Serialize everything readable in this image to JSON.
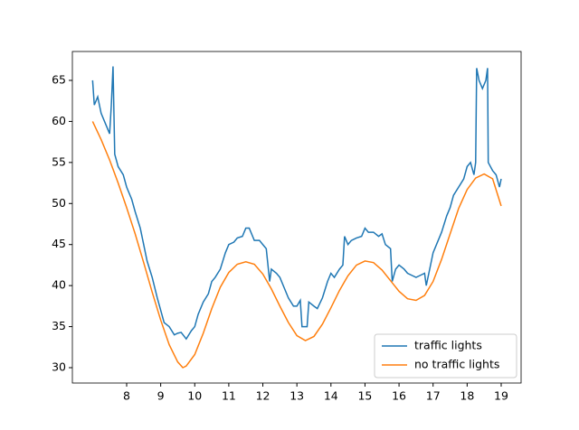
{
  "chart_data": {
    "type": "line",
    "xlim": [
      6.406,
      19.585
    ],
    "ylim": [
      28.13,
      68.52
    ],
    "xticks": [
      8,
      9,
      10,
      11,
      12,
      13,
      14,
      15,
      16,
      17,
      18,
      19
    ],
    "yticks": [
      30,
      35,
      40,
      45,
      50,
      55,
      60,
      65
    ],
    "legend": "lower right",
    "series": [
      {
        "name": "traffic lights",
        "color": "#1f77b4",
        "x": [
          7.0,
          7.05,
          7.15,
          7.25,
          7.4,
          7.5,
          7.55,
          7.6,
          7.65,
          7.75,
          7.9,
          8.0,
          8.15,
          8.25,
          8.4,
          8.5,
          8.6,
          8.75,
          8.9,
          9.0,
          9.1,
          9.25,
          9.4,
          9.5,
          9.6,
          9.75,
          9.9,
          10.0,
          10.1,
          10.25,
          10.4,
          10.5,
          10.6,
          10.75,
          10.9,
          11.0,
          11.15,
          11.25,
          11.4,
          11.5,
          11.6,
          11.75,
          11.9,
          12.0,
          12.1,
          12.2,
          12.25,
          12.4,
          12.5,
          12.6,
          12.75,
          12.9,
          13.0,
          13.1,
          13.15,
          13.3,
          13.35,
          13.5,
          13.6,
          13.75,
          13.9,
          14.0,
          14.1,
          14.25,
          14.35,
          14.4,
          14.5,
          14.6,
          14.75,
          14.9,
          15.0,
          15.1,
          15.25,
          15.4,
          15.5,
          15.6,
          15.75,
          15.8,
          15.9,
          16.0,
          16.15,
          16.25,
          16.4,
          16.5,
          16.6,
          16.75,
          16.8,
          16.9,
          17.0,
          17.1,
          17.25,
          17.4,
          17.5,
          17.6,
          17.75,
          17.9,
          18.0,
          18.1,
          18.2,
          18.25,
          18.28,
          18.35,
          18.45,
          18.55,
          18.6,
          18.62,
          18.75,
          18.85,
          18.95,
          19.0
        ],
        "values": [
          65,
          62,
          63,
          61,
          59.5,
          58.5,
          62,
          66.7,
          56,
          54.5,
          53.5,
          52,
          50.5,
          49,
          47,
          45,
          43,
          41,
          38.5,
          37,
          35.5,
          35,
          34,
          34.2,
          34.3,
          33.5,
          34.5,
          35,
          36.5,
          38,
          39,
          40.5,
          41,
          42,
          44,
          45,
          45.3,
          45.8,
          46,
          47,
          47,
          45.5,
          45.5,
          45,
          44.5,
          40.5,
          42,
          41.5,
          41,
          40,
          38.5,
          37.5,
          37.5,
          38.2,
          35,
          35,
          38,
          37.5,
          37.2,
          38.5,
          40.5,
          41.5,
          41,
          42,
          42.5,
          46,
          45,
          45.5,
          45.8,
          46,
          47,
          46.5,
          46.5,
          46,
          46.3,
          45,
          44.5,
          40.5,
          42,
          42.5,
          42,
          41.5,
          41.2,
          41,
          41.2,
          41.5,
          40,
          42,
          44,
          45,
          46.5,
          48.5,
          49.5,
          51,
          52,
          53,
          54.5,
          55,
          53.5,
          55,
          66.5,
          65,
          64,
          65,
          66.5,
          55,
          54,
          53.5,
          52,
          53
        ]
      },
      {
        "name": "no traffic lights",
        "color": "#ff7f0e",
        "x": [
          7.0,
          7.25,
          7.5,
          7.75,
          8.0,
          8.25,
          8.5,
          8.75,
          9.0,
          9.25,
          9.5,
          9.65,
          9.75,
          10.0,
          10.25,
          10.5,
          10.75,
          11.0,
          11.25,
          11.5,
          11.75,
          12.0,
          12.25,
          12.5,
          12.75,
          13.0,
          13.25,
          13.5,
          13.75,
          14.0,
          14.25,
          14.5,
          14.75,
          15.0,
          15.25,
          15.5,
          15.75,
          16.0,
          16.25,
          16.5,
          16.75,
          17.0,
          17.25,
          17.5,
          17.75,
          18.0,
          18.25,
          18.5,
          18.75,
          19.0
        ],
        "values": [
          60,
          57.8,
          55.3,
          52.5,
          49.5,
          46.3,
          42.8,
          39.2,
          35.8,
          32.8,
          30.7,
          30.0,
          30.2,
          31.6,
          34.2,
          37.2,
          39.8,
          41.6,
          42.6,
          42.9,
          42.6,
          41.4,
          39.6,
          37.5,
          35.5,
          33.9,
          33.3,
          33.8,
          35.3,
          37.3,
          39.4,
          41.2,
          42.5,
          43.0,
          42.8,
          41.9,
          40.6,
          39.3,
          38.4,
          38.2,
          38.8,
          40.5,
          43.2,
          46.3,
          49.4,
          51.7,
          53.1,
          53.6,
          53.0,
          49.7
        ]
      }
    ]
  }
}
